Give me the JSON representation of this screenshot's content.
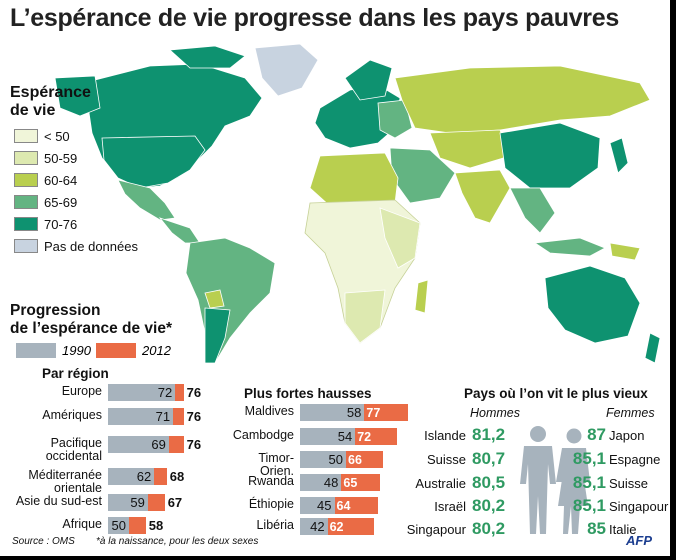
{
  "title": "L’espérance de vie progresse dans les pays pauvres",
  "legend": {
    "title_line1": "Espérance",
    "title_line2": "de vie",
    "items": [
      {
        "label": "< 50",
        "color": "#f0f5d9"
      },
      {
        "label": "50-59",
        "color": "#dde9b0"
      },
      {
        "label": "60-64",
        "color": "#b9cf4f"
      },
      {
        "label": "65-69",
        "color": "#63b482"
      },
      {
        "label": "70-76",
        "color": "#0e9270"
      },
      {
        "label": "Pas de données",
        "color": "#c8d3e0"
      }
    ]
  },
  "progression": {
    "title_line1": "Progression",
    "title_line2": "de l’espérance de vie*",
    "year1": "1990",
    "year2": "2012",
    "color1990": "#a7b3bd",
    "color2012": "#ea6b45"
  },
  "chart_data": [
    {
      "type": "bar",
      "title": "Par région",
      "categories": [
        "Europe",
        "Amériques",
        "Pacifique occidental",
        "Méditerranée orientale",
        "Asie du sud-est",
        "Afrique"
      ],
      "series": [
        {
          "name": "1990",
          "values": [
            72,
            71,
            69,
            62,
            59,
            50
          ]
        },
        {
          "name": "2012",
          "values": [
            76,
            76,
            76,
            68,
            67,
            58
          ]
        }
      ]
    },
    {
      "type": "bar",
      "title": "Plus fortes hausses",
      "categories": [
        "Maldives",
        "Cambodge",
        "Timor-Orien.",
        "Rwanda",
        "Éthiopie",
        "Libéria"
      ],
      "series": [
        {
          "name": "1990",
          "values": [
            58,
            54,
            50,
            48,
            45,
            42
          ]
        },
        {
          "name": "2012",
          "values": [
            77,
            72,
            66,
            65,
            64,
            62
          ]
        }
      ]
    },
    {
      "type": "table",
      "title": "Pays où l’on vit le plus vieux",
      "columns": [
        "Hommes",
        "Femmes"
      ],
      "men": [
        {
          "country": "Islande",
          "value": "81,2"
        },
        {
          "country": "Suisse",
          "value": "80,7"
        },
        {
          "country": "Australie",
          "value": "80,5"
        },
        {
          "country": "Israël",
          "value": "80,2"
        },
        {
          "country": "Singapour",
          "value": "80,2"
        }
      ],
      "women": [
        {
          "country": "Japon",
          "value": "87"
        },
        {
          "country": "Espagne",
          "value": "85,1"
        },
        {
          "country": "Suisse",
          "value": "85,1"
        },
        {
          "country": "Singapour",
          "value": "85,1"
        },
        {
          "country": "Italie",
          "value": "85"
        }
      ]
    }
  ],
  "footer": {
    "source": "Source : OMS",
    "note": "*à la naissance, pour les deux sexes",
    "agency": "AFP"
  }
}
